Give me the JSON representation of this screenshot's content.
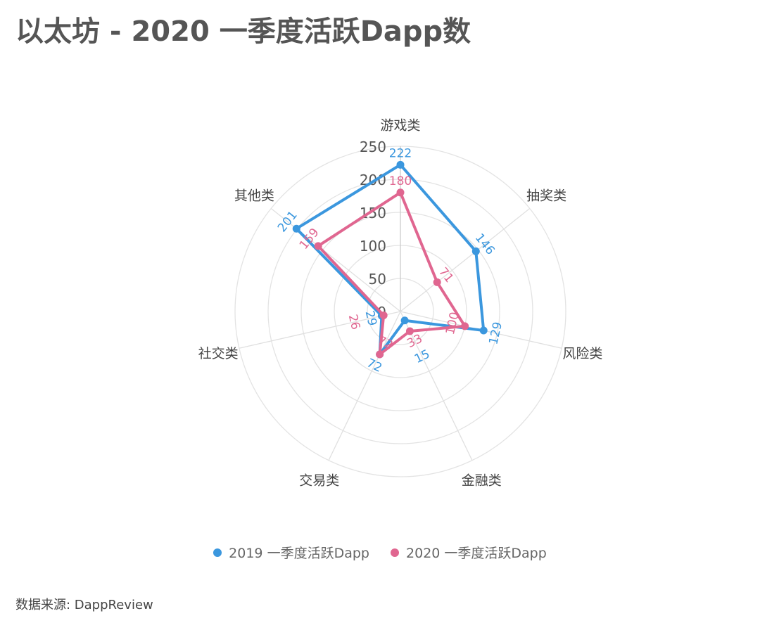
{
  "title": "以太坊 - 2020 一季度活跃Dapp数",
  "source": "数据来源: DappReview",
  "chart_data": {
    "type": "radar",
    "title": "以太坊 - 2020 一季度活跃Dapp数",
    "categories": [
      "游戏类",
      "抽奖类",
      "风险类",
      "金融类",
      "交易类",
      "社交类",
      "其他类"
    ],
    "series": [
      {
        "name": "2019 一季度活跃Dapp",
        "color": "#3b97de",
        "values": [
          222,
          146,
          129,
          15,
          72,
          29,
          201
        ]
      },
      {
        "name": "2020 一季度活跃Dapp",
        "color": "#e06690",
        "values": [
          180,
          71,
          100,
          33,
          72,
          26,
          159
        ]
      }
    ],
    "rmax": 250,
    "ticks": [
      0,
      50,
      100,
      150,
      200,
      250
    ],
    "legend_position": "bottom"
  }
}
